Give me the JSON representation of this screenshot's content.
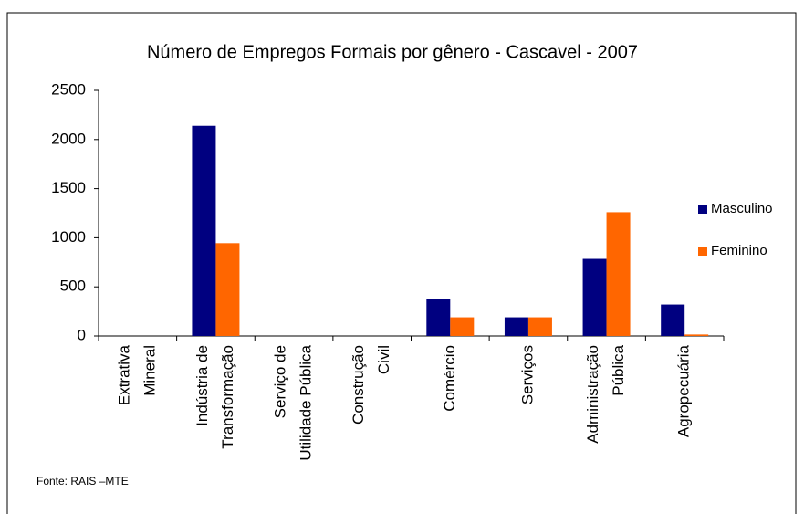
{
  "chart_data": {
    "type": "bar",
    "title": "Número de Empregos Formais por gênero - Cascavel - 2007",
    "categories": [
      [
        "Extrativa",
        "Mineral"
      ],
      [
        "Indústria de",
        "Transformação"
      ],
      [
        "Serviço de",
        "Utilidade Pública"
      ],
      [
        "Construção",
        "Civil"
      ],
      [
        "Comércio"
      ],
      [
        "Serviços"
      ],
      [
        "Administração",
        "Pública"
      ],
      [
        "Agropecuária"
      ]
    ],
    "series": [
      {
        "name": "Masculino",
        "color": "#000080",
        "values": [
          0,
          2140,
          0,
          0,
          380,
          190,
          785,
          320
        ]
      },
      {
        "name": "Feminino",
        "color": "#ff6600",
        "values": [
          0,
          945,
          0,
          0,
          190,
          190,
          1260,
          15
        ]
      }
    ],
    "ylim": [
      0,
      2500
    ],
    "yticks": [
      0,
      500,
      1000,
      1500,
      2000,
      2500
    ],
    "legend": "right",
    "source": "Fonte: RAIS –MTE"
  }
}
